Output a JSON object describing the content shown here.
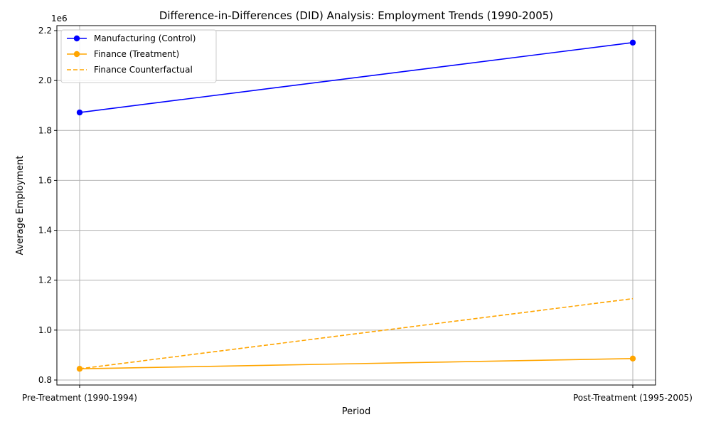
{
  "chart_data": {
    "type": "line",
    "title": "Difference-in-Differences (DID) Analysis: Employment Trends (1990-2005)",
    "xlabel": "Period",
    "ylabel": "Average Employment",
    "categories": [
      "Pre-Treatment (1990-1994)",
      "Post-Treatment (1995-2005)"
    ],
    "ylim": [
      780000,
      2220000
    ],
    "yticks": [
      800000,
      1000000,
      1200000,
      1400000,
      1600000,
      1800000,
      2000000,
      2200000
    ],
    "ytick_labels": [
      "0.8",
      "1.0",
      "1.2",
      "1.4",
      "1.6",
      "1.8",
      "2.0",
      "2.2"
    ],
    "y_offset_label": "1e6",
    "grid": true,
    "legend_position": "top-left",
    "series": [
      {
        "name": "Manufacturing (Control)",
        "values": [
          1872000,
          2152000
        ],
        "color": "#0000ff",
        "style": "solid",
        "markers": true
      },
      {
        "name": "Finance (Treatment)",
        "values": [
          845000,
          886000
        ],
        "color": "#ffa500",
        "style": "solid",
        "markers": true
      },
      {
        "name": "Finance Counterfactual",
        "values": [
          845000,
          1126000
        ],
        "color": "#ffa500",
        "style": "dashed",
        "markers": false
      }
    ]
  }
}
